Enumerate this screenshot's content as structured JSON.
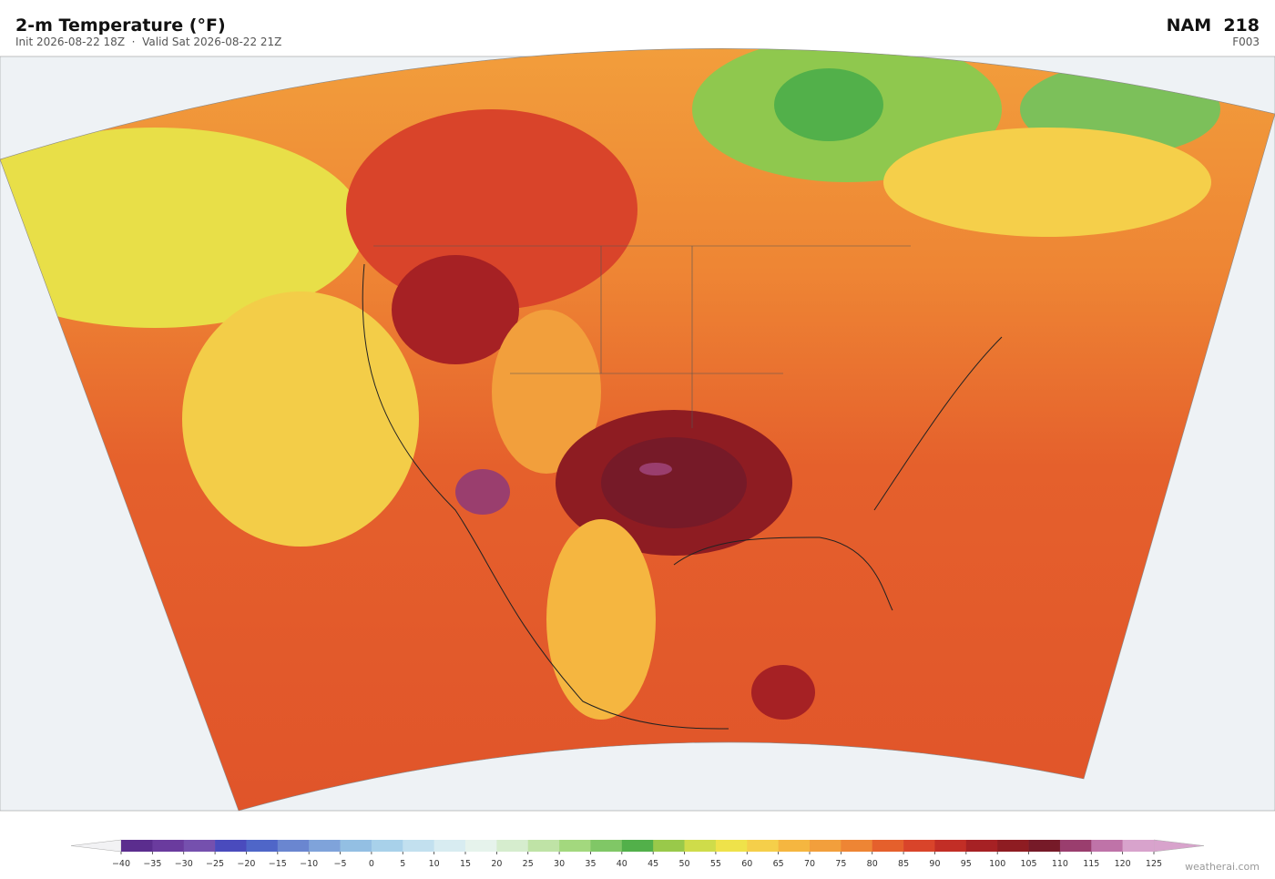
{
  "header": {
    "title": "2-m Temperature  (°F)",
    "subtitle": "Init 2026-08-22 18Z  ·  Valid Sat 2026-08-22 21Z",
    "model": "NAM  218",
    "forecast": "F003"
  },
  "colorbar": {
    "ticks": [
      {
        "value": -40,
        "label": "−40"
      },
      {
        "value": -35,
        "label": "−35"
      },
      {
        "value": -30,
        "label": "−30"
      },
      {
        "value": -25,
        "label": "−25"
      },
      {
        "value": -20,
        "label": "−20"
      },
      {
        "value": -15,
        "label": "−15"
      },
      {
        "value": -10,
        "label": "−10"
      },
      {
        "value": -5,
        "label": "−5"
      },
      0,
      5,
      10,
      15,
      20,
      25,
      30,
      35,
      40,
      45,
      50,
      55,
      60,
      65,
      70,
      75,
      80,
      85,
      90,
      95,
      100,
      105,
      110,
      115,
      120,
      125
    ],
    "colors": [
      "#5b2d8e",
      "#6a3b9e",
      "#7550ae",
      "#4a4bbd",
      "#4f66c8",
      "#6a86d0",
      "#7fa3da",
      "#93bfe3",
      "#a8d1ea",
      "#c2e0ef",
      "#d8ecf1",
      "#e6f3ec",
      "#d6edce",
      "#bfe3a6",
      "#a3d87e",
      "#80c766",
      "#52b04a",
      "#99c94a",
      "#cfdc4a",
      "#efe24a",
      "#f5cf4a",
      "#f5b640",
      "#f29f3c",
      "#ee8534",
      "#e5602c",
      "#d9442a",
      "#c22e26",
      "#a62124",
      "#8e1c22",
      "#761a28",
      "#9a3e6e",
      "#bf73a8",
      "#d8a3cc"
    ],
    "under_color": "#f2f2f4",
    "over_color": "#d8a3cc"
  },
  "footer": {
    "credit": "weatherai.com"
  }
}
